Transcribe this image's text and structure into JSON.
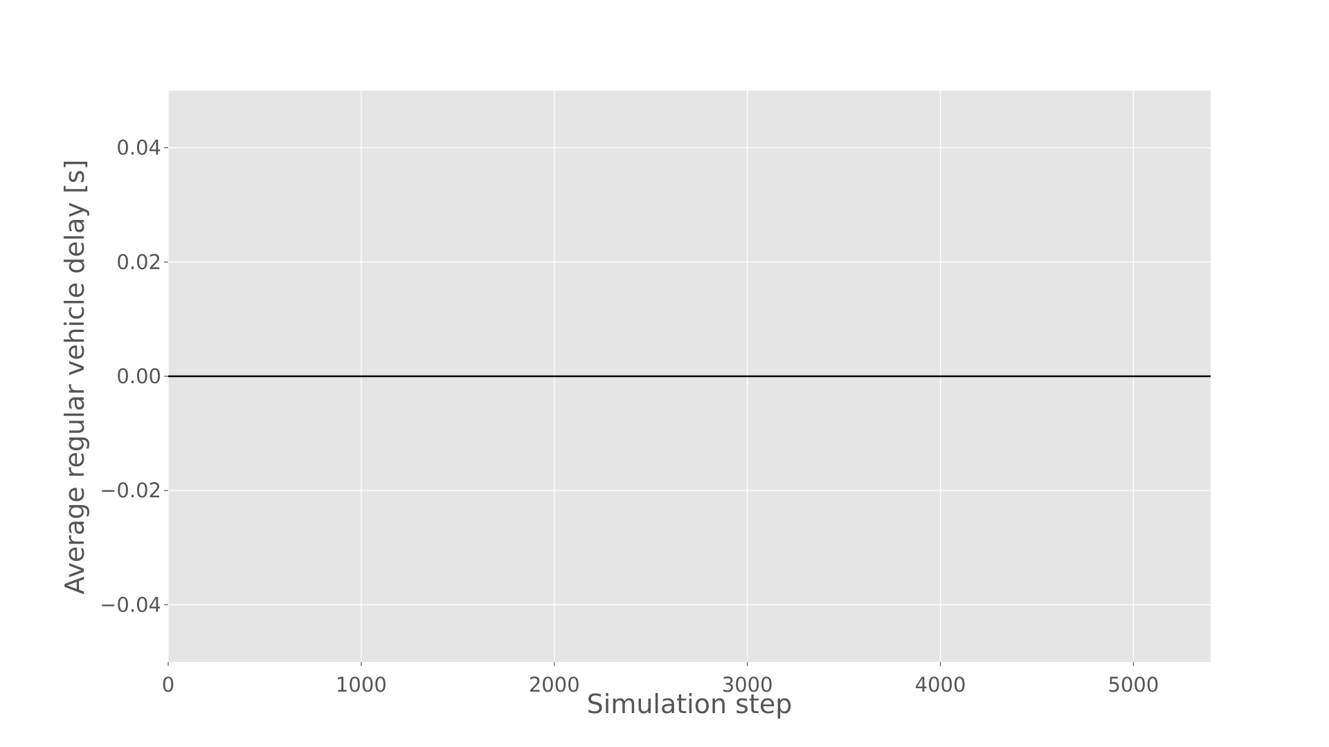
{
  "chart_data": {
    "type": "line",
    "title": "",
    "xlabel": "Simulation step",
    "ylabel": "Average regular vehicle delay [s]",
    "xlim": [
      0,
      5400
    ],
    "ylim": [
      -0.05,
      0.05
    ],
    "xticks": [
      0,
      1000,
      2000,
      3000,
      4000,
      5000
    ],
    "xtick_labels": [
      "0",
      "1000",
      "2000",
      "3000",
      "4000",
      "5000"
    ],
    "yticks": [
      -0.04,
      -0.02,
      0.0,
      0.02,
      0.04
    ],
    "ytick_labels": [
      "−0.04",
      "−0.02",
      "0.00",
      "0.02",
      "0.04"
    ],
    "grid": true,
    "legend": "none",
    "series": [
      {
        "color": "#000000",
        "x": [
          0,
          5400
        ],
        "y": [
          0,
          0
        ]
      }
    ],
    "colors": {
      "plot_background": "#e5e5e5",
      "grid": "#ffffff",
      "text": "#555555"
    }
  }
}
